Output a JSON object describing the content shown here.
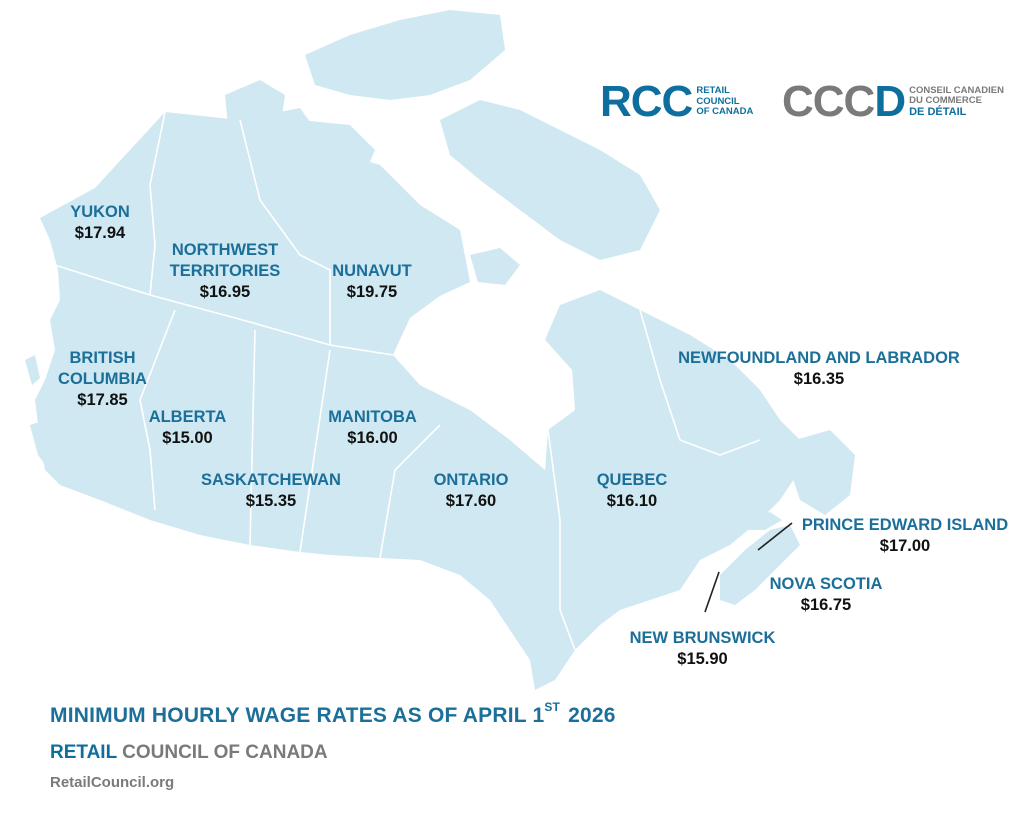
{
  "logos": {
    "rcc_mark": "RCC",
    "rcc_lines": [
      "RETAIL",
      "COUNCIL",
      "OF CANADA"
    ],
    "cccd_mark_grey": "CCC",
    "cccd_mark_blue": "D",
    "cccd_lines": [
      "CONSEIL CANADIEN",
      "DU COMMERCE",
      "DE DÉTAIL"
    ]
  },
  "provinces": [
    {
      "id": "yukon",
      "name": "YUKON",
      "wage": "$17.94"
    },
    {
      "id": "nwt",
      "name1": "NORTHWEST",
      "name2": "TERRITORIES",
      "wage": "$16.95"
    },
    {
      "id": "nunavut",
      "name": "NUNAVUT",
      "wage": "$19.75"
    },
    {
      "id": "bc",
      "name1": "BRITISH",
      "name2": "COLUMBIA",
      "wage": "$17.85"
    },
    {
      "id": "alberta",
      "name": "ALBERTA",
      "wage": "$15.00"
    },
    {
      "id": "manitoba",
      "name": "MANITOBA",
      "wage": "$16.00"
    },
    {
      "id": "saskatchewan",
      "name": "SASKATCHEWAN",
      "wage": "$15.35"
    },
    {
      "id": "ontario",
      "name": "ONTARIO",
      "wage": "$17.60"
    },
    {
      "id": "quebec",
      "name": "QUEBEC",
      "wage": "$16.10"
    },
    {
      "id": "nl",
      "name": "NEWFOUNDLAND AND LABRADOR",
      "wage": "$16.35"
    },
    {
      "id": "pei",
      "name": "PRINCE EDWARD ISLAND",
      "wage": "$17.00"
    },
    {
      "id": "ns",
      "name": "NOVA SCOTIA",
      "wage": "$16.75"
    },
    {
      "id": "nb",
      "name": "NEW BRUNSWICK",
      "wage": "$15.90"
    }
  ],
  "footer": {
    "title_main": "MINIMUM HOURLY WAGE RATES AS OF APRIL 1",
    "title_sup": "ST",
    "title_year": "2026",
    "org_blue": "RETAIL",
    "org_grey": " COUNCIL OF CANADA",
    "website": "RetailCouncil.org"
  },
  "colors": {
    "land": "#cfe8f1",
    "border": "#ffffff",
    "province_label": "#1b6f99",
    "wage_label": "#111111",
    "brand_blue": "#0e6f9e",
    "brand_grey": "#7a7a7a"
  }
}
